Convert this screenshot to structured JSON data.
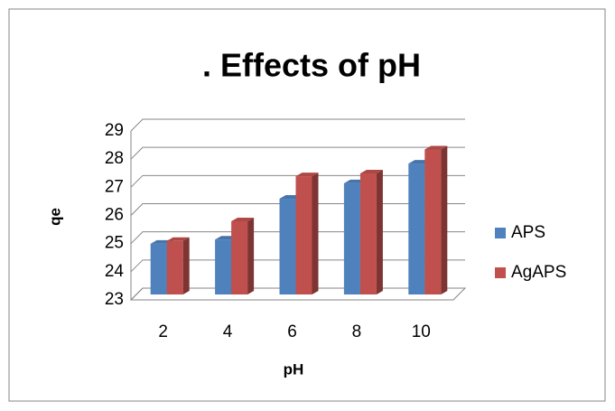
{
  "chart_data": {
    "type": "bar",
    "title": ". Effects of pH",
    "x_label": "pH",
    "y_label": "qe",
    "categories": [
      "2",
      "4",
      "6",
      "8",
      "10"
    ],
    "series": [
      {
        "name": "APS",
        "color": "#4f81bd",
        "values": [
          24.8,
          24.95,
          26.4,
          26.95,
          27.65
        ]
      },
      {
        "name": "AgAPS",
        "color": "#c0504d",
        "values": [
          24.9,
          25.6,
          27.2,
          27.3,
          28.15
        ]
      }
    ],
    "ylim": [
      23,
      29
    ],
    "yticks": [
      23,
      24,
      25,
      26,
      27,
      28,
      29
    ],
    "grid": true,
    "legend": "right"
  }
}
